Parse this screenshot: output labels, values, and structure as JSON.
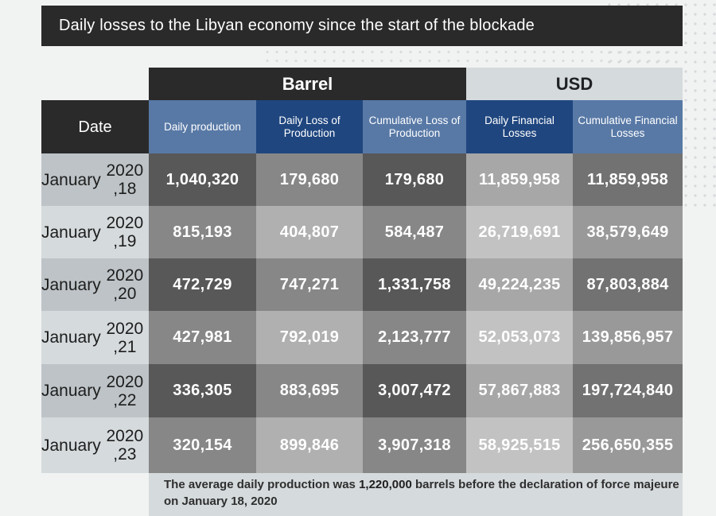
{
  "title": "Daily losses to the Libyan economy since the start of the blockade",
  "groups": {
    "barrel": "Barrel",
    "usd": "USD"
  },
  "headers": {
    "date": "Date",
    "daily_production": "Daily production",
    "daily_loss": "Daily Loss of Production",
    "cumulative_loss": "Cumulative Loss of Production",
    "daily_financial": "Daily Financial Losses",
    "cumulative_financial": "Cumulative Financial Losses"
  },
  "rows": [
    {
      "date_line1": "January",
      "date_line2": "2020 ,18",
      "daily_production": "1,040,320",
      "daily_loss": "179,680",
      "cumulative_loss": "179,680",
      "daily_financial": "11,859,958",
      "cumulative_financial": "11,859,958"
    },
    {
      "date_line1": "January",
      "date_line2": "2020 ,19",
      "daily_production": "815,193",
      "daily_loss": "404,807",
      "cumulative_loss": "584,487",
      "daily_financial": "26,719,691",
      "cumulative_financial": "38,579,649"
    },
    {
      "date_line1": "January",
      "date_line2": "2020 ,20",
      "daily_production": "472,729",
      "daily_loss": "747,271",
      "cumulative_loss": "1,331,758",
      "daily_financial": "49,224,235",
      "cumulative_financial": "87,803,884"
    },
    {
      "date_line1": "January",
      "date_line2": "2020 ,21",
      "daily_production": "427,981",
      "daily_loss": "792,019",
      "cumulative_loss": "2,123,777",
      "daily_financial": "52,053,073",
      "cumulative_financial": "139,856,957"
    },
    {
      "date_line1": "January",
      "date_line2": "2020 ,22",
      "daily_production": "336,305",
      "daily_loss": "883,695",
      "cumulative_loss": "3,007,472",
      "daily_financial": "57,867,883",
      "cumulative_financial": "197,724,840"
    },
    {
      "date_line1": "January",
      "date_line2": "2020 ,23",
      "daily_production": "320,154",
      "daily_loss": "899,846",
      "cumulative_loss": "3,907,318",
      "daily_financial": "58,925,515",
      "cumulative_financial": "256,650,355"
    }
  ],
  "footnote": {
    "part1": "The average daily production was ",
    "highlight": "1,220,000",
    "part2": " barrels before the declaration of force majeure on January 18, 2020"
  },
  "colors": {
    "dark_header": "#2b2a2b",
    "header_blue": "#5879a6",
    "header_navy": "#1f467f",
    "usd_band": "#d5dadc"
  }
}
